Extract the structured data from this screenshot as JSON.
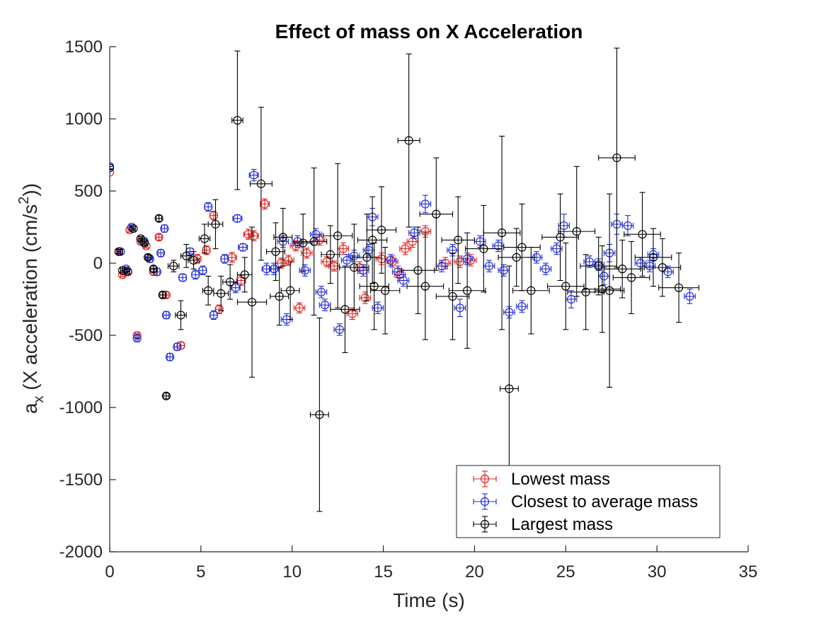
{
  "chart_data": {
    "type": "scatter",
    "title": "Effect of mass on X Acceleration",
    "xlabel": "Time (s)",
    "ylabel": {
      "prefix": "a",
      "sub": "x",
      "text": " (X acceleration (cm/s",
      "sup": "2",
      "suffix": "))"
    },
    "xlim": [
      0,
      35
    ],
    "ylim": [
      -2000,
      1500
    ],
    "xticks": [
      0,
      5,
      10,
      15,
      20,
      25,
      30,
      35
    ],
    "yticks": [
      -2000,
      -1500,
      -1000,
      -500,
      0,
      500,
      1000,
      1500
    ],
    "grid": false,
    "legend_position": "lower-right",
    "marker": "open-circle",
    "error_bars": "x and y",
    "series": [
      {
        "name": "Lowest mass",
        "color": "#e0201b",
        "points": [
          [
            0.0,
            630,
            0,
            0
          ],
          [
            0.5,
            80,
            0.1,
            8
          ],
          [
            0.7,
            -80,
            0.1,
            15
          ],
          [
            0.9,
            -60,
            0.1,
            15
          ],
          [
            1.1,
            230,
            0.1,
            15
          ],
          [
            1.5,
            -500,
            0.1,
            15
          ],
          [
            1.7,
            150,
            0.1,
            15
          ],
          [
            2.0,
            120,
            0.1,
            15
          ],
          [
            2.4,
            -60,
            0.15,
            20
          ],
          [
            2.7,
            180,
            0.15,
            20
          ],
          [
            3.1,
            -220,
            0.15,
            20
          ],
          [
            3.9,
            -570,
            0.2,
            25
          ],
          [
            4.8,
            30,
            0.2,
            30
          ],
          [
            5.3,
            90,
            0.2,
            30
          ],
          [
            5.7,
            330,
            0.2,
            30
          ],
          [
            6.0,
            -320,
            0.2,
            30
          ],
          [
            6.7,
            40,
            0.25,
            35
          ],
          [
            7.2,
            -120,
            0.25,
            35
          ],
          [
            7.6,
            200,
            0.25,
            35
          ],
          [
            7.9,
            190,
            0.25,
            35
          ],
          [
            8.5,
            410,
            0.25,
            35
          ],
          [
            9.4,
            0,
            0.3,
            35
          ],
          [
            9.8,
            20,
            0.3,
            35
          ],
          [
            10.2,
            120,
            0.3,
            35
          ],
          [
            10.4,
            -310,
            0.3,
            35
          ],
          [
            10.8,
            70,
            0.3,
            35
          ],
          [
            11.5,
            160,
            0.3,
            35
          ],
          [
            11.9,
            10,
            0.3,
            35
          ],
          [
            12.3,
            -20,
            0.3,
            35
          ],
          [
            12.8,
            100,
            0.3,
            40
          ],
          [
            13.3,
            -350,
            0.3,
            40
          ],
          [
            13.7,
            -30,
            0.3,
            40
          ],
          [
            14.0,
            -240,
            0.3,
            40
          ],
          [
            14.9,
            30,
            0.3,
            40
          ],
          [
            15.5,
            10,
            0.3,
            40
          ],
          [
            15.9,
            -80,
            0.3,
            40
          ],
          [
            16.2,
            100,
            0.3,
            40
          ],
          [
            16.6,
            150,
            0.3,
            40
          ],
          [
            17.3,
            220,
            0.3,
            40
          ],
          [
            18.4,
            0,
            0.3,
            40
          ],
          [
            19.2,
            10,
            0.3,
            40
          ],
          [
            19.8,
            20,
            0.3,
            40
          ]
        ]
      },
      {
        "name": "Closest to average mass",
        "color": "#1f2bd8",
        "points": [
          [
            0.0,
            670,
            0,
            15
          ],
          [
            0.6,
            80,
            0.1,
            15
          ],
          [
            0.9,
            -40,
            0.1,
            15
          ],
          [
            1.2,
            250,
            0.1,
            15
          ],
          [
            1.5,
            -520,
            0.1,
            25
          ],
          [
            1.9,
            150,
            0.1,
            25
          ],
          [
            2.2,
            30,
            0.15,
            25
          ],
          [
            2.6,
            -60,
            0.15,
            25
          ],
          [
            2.8,
            70,
            0.15,
            25
          ],
          [
            3.0,
            240,
            0.15,
            25
          ],
          [
            3.1,
            -360,
            0.15,
            25
          ],
          [
            3.3,
            -650,
            0.15,
            25
          ],
          [
            3.7,
            -580,
            0.15,
            25
          ],
          [
            4.0,
            -100,
            0.2,
            25
          ],
          [
            4.4,
            80,
            0.2,
            25
          ],
          [
            4.7,
            -80,
            0.2,
            30
          ],
          [
            5.1,
            -50,
            0.2,
            30
          ],
          [
            5.4,
            390,
            0.2,
            30
          ],
          [
            5.7,
            -360,
            0.2,
            30
          ],
          [
            6.3,
            30,
            0.2,
            30
          ],
          [
            6.9,
            -170,
            0.25,
            35
          ],
          [
            7.0,
            310,
            0.25,
            25
          ],
          [
            7.3,
            110,
            0.25,
            25
          ],
          [
            7.9,
            610,
            0.25,
            40
          ],
          [
            8.6,
            -40,
            0.25,
            40
          ],
          [
            9.0,
            -40,
            0.25,
            40
          ],
          [
            9.5,
            150,
            0.3,
            40
          ],
          [
            9.7,
            -390,
            0.3,
            40
          ],
          [
            10.3,
            150,
            0.3,
            40
          ],
          [
            10.7,
            -50,
            0.3,
            40
          ],
          [
            11.3,
            200,
            0.3,
            40
          ],
          [
            11.6,
            -200,
            0.3,
            40
          ],
          [
            11.8,
            -290,
            0.3,
            40
          ],
          [
            12.6,
            -460,
            0.3,
            40
          ],
          [
            13.0,
            20,
            0.3,
            40
          ],
          [
            13.4,
            50,
            0.3,
            40
          ],
          [
            13.9,
            -50,
            0.3,
            40
          ],
          [
            14.2,
            90,
            0.3,
            40
          ],
          [
            14.4,
            320,
            0.3,
            60
          ],
          [
            14.7,
            -310,
            0.3,
            40
          ],
          [
            15.4,
            20,
            0.3,
            40
          ],
          [
            15.8,
            -60,
            0.3,
            40
          ],
          [
            16.1,
            -120,
            0.3,
            40
          ],
          [
            16.7,
            210,
            0.3,
            40
          ],
          [
            17.3,
            410,
            0.3,
            60
          ],
          [
            18.2,
            -20,
            0.3,
            40
          ],
          [
            18.8,
            90,
            0.3,
            40
          ],
          [
            19.2,
            -310,
            0.3,
            60
          ],
          [
            19.6,
            30,
            0.3,
            40
          ],
          [
            20.3,
            150,
            0.3,
            40
          ],
          [
            20.8,
            -20,
            0.3,
            40
          ],
          [
            21.3,
            120,
            0.3,
            40
          ],
          [
            21.6,
            -50,
            0.3,
            40
          ],
          [
            21.9,
            -340,
            0.3,
            40
          ],
          [
            22.6,
            -300,
            0.3,
            40
          ],
          [
            23.4,
            40,
            0.3,
            40
          ],
          [
            23.9,
            -40,
            0.3,
            40
          ],
          [
            24.5,
            100,
            0.3,
            40
          ],
          [
            24.9,
            260,
            0.3,
            80
          ],
          [
            25.3,
            -250,
            0.3,
            60
          ],
          [
            26.3,
            10,
            0.3,
            40
          ],
          [
            26.8,
            -10,
            0.3,
            40
          ],
          [
            27.1,
            -90,
            0.3,
            60
          ],
          [
            27.4,
            70,
            0.3,
            60
          ],
          [
            27.8,
            270,
            0.3,
            70
          ],
          [
            28.4,
            260,
            0.3,
            70
          ],
          [
            29.1,
            0,
            0.3,
            40
          ],
          [
            29.6,
            -20,
            0.3,
            40
          ],
          [
            29.8,
            60,
            0.3,
            40
          ],
          [
            30.6,
            -60,
            0.3,
            40
          ],
          [
            31.8,
            -230,
            0.3,
            50
          ]
        ]
      },
      {
        "name": "Largest mass",
        "color": "#000000",
        "points": [
          [
            0.0,
            660,
            0,
            10
          ],
          [
            0.5,
            80,
            0.1,
            15
          ],
          [
            0.7,
            -50,
            0.1,
            15
          ],
          [
            1.0,
            -60,
            0.1,
            15
          ],
          [
            1.3,
            240,
            0.1,
            15
          ],
          [
            1.7,
            170,
            0.1,
            15
          ],
          [
            1.9,
            140,
            0.1,
            15
          ],
          [
            2.1,
            40,
            0.15,
            20
          ],
          [
            2.4,
            -40,
            0.15,
            20
          ],
          [
            2.7,
            310,
            0.15,
            20
          ],
          [
            2.9,
            -220,
            0.15,
            20
          ],
          [
            3.1,
            -920,
            0.15,
            20
          ],
          [
            3.5,
            -20,
            0.3,
            40
          ],
          [
            3.9,
            -360,
            0.3,
            100
          ],
          [
            4.2,
            50,
            0.3,
            80
          ],
          [
            4.6,
            20,
            0.3,
            60
          ],
          [
            5.2,
            170,
            0.3,
            100
          ],
          [
            5.4,
            -190,
            0.3,
            100
          ],
          [
            5.8,
            270,
            0.4,
            170
          ],
          [
            6.1,
            -210,
            0.4,
            120
          ],
          [
            6.6,
            -130,
            0.4,
            120
          ],
          [
            7.0,
            990,
            0.3,
            480
          ],
          [
            7.4,
            -80,
            0.4,
            120
          ],
          [
            7.8,
            -270,
            0.8,
            520
          ],
          [
            8.3,
            550,
            0.6,
            530
          ],
          [
            9.1,
            80,
            0.5,
            200
          ],
          [
            9.5,
            180,
            0.5,
            200
          ],
          [
            9.3,
            -230,
            0.5,
            200
          ],
          [
            9.9,
            -190,
            0.5,
            200
          ],
          [
            10.6,
            140,
            0.5,
            200
          ],
          [
            11.2,
            150,
            0.7,
            510
          ],
          [
            11.5,
            -1050,
            0.5,
            670
          ],
          [
            12.1,
            60,
            0.5,
            200
          ],
          [
            12.5,
            190,
            0.8,
            500
          ],
          [
            12.9,
            -320,
            0.8,
            300
          ],
          [
            13.4,
            -30,
            0.8,
            300
          ],
          [
            14.1,
            40,
            0.8,
            300
          ],
          [
            14.4,
            160,
            0.8,
            300
          ],
          [
            14.5,
            -160,
            0.8,
            300
          ],
          [
            14.9,
            230,
            0.8,
            300
          ],
          [
            15.1,
            -190,
            0.8,
            300
          ],
          [
            16.4,
            850,
            0.6,
            600
          ],
          [
            16.9,
            -50,
            0.9,
            300
          ],
          [
            17.3,
            -160,
            1.0,
            370
          ],
          [
            17.9,
            340,
            0.9,
            390
          ],
          [
            18.8,
            -230,
            0.9,
            300
          ],
          [
            19.1,
            160,
            0.9,
            300
          ],
          [
            19.6,
            -190,
            1.0,
            400
          ],
          [
            20.5,
            100,
            1.0,
            300
          ],
          [
            21.5,
            210,
            1.0,
            670
          ],
          [
            21.9,
            -870,
            0.5,
            850
          ],
          [
            22.3,
            40,
            1.0,
            200
          ],
          [
            22.6,
            110,
            1.0,
            300
          ],
          [
            23.1,
            -190,
            1.0,
            300
          ],
          [
            24.7,
            180,
            1.0,
            300
          ],
          [
            25.0,
            -160,
            1.0,
            300
          ],
          [
            25.6,
            220,
            1.0,
            450
          ],
          [
            26.1,
            -200,
            1.0,
            260
          ],
          [
            26.8,
            -20,
            1.0,
            200
          ],
          [
            27.0,
            -180,
            1.0,
            300
          ],
          [
            27.4,
            -190,
            0.8,
            670
          ],
          [
            27.8,
            730,
            1.0,
            760
          ],
          [
            28.1,
            -40,
            1.0,
            200
          ],
          [
            28.6,
            -100,
            1.0,
            250
          ],
          [
            29.2,
            200,
            1.0,
            290
          ],
          [
            29.8,
            40,
            1.0,
            200
          ],
          [
            30.3,
            -30,
            1.0,
            200
          ],
          [
            31.2,
            -170,
            1.1,
            240
          ]
        ]
      }
    ]
  }
}
